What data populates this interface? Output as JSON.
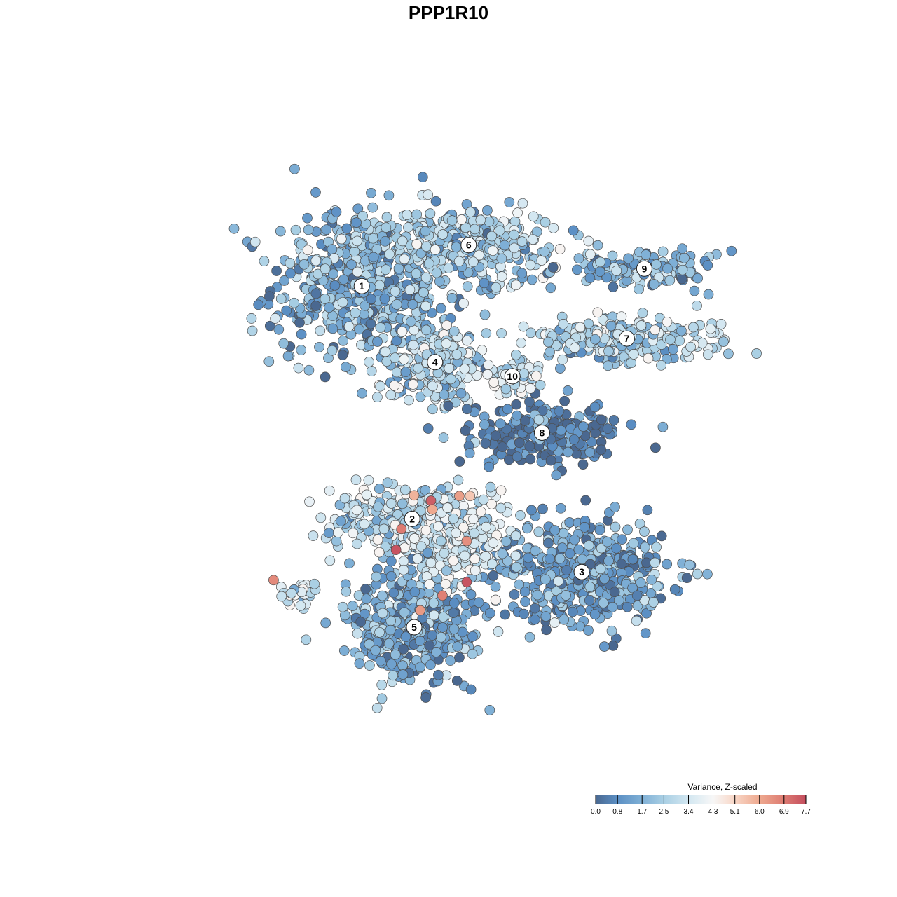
{
  "chart_data": {
    "type": "scatter",
    "title": "PPP1R10",
    "xlabel": "",
    "ylabel": "",
    "axes_visible": false,
    "grid": false,
    "legend_placement": "bottom-right",
    "color_scale": {
      "title": "Variance, Z-scaled",
      "min": 0.0,
      "max": 7.7,
      "ticks": [
        0.0,
        0.8,
        1.7,
        2.5,
        3.4,
        4.3,
        5.1,
        6.0,
        6.9,
        7.7
      ],
      "tick_labels": [
        "0.0",
        "0.8",
        "1.7",
        "2.5",
        "3.4",
        "4.3",
        "5.1",
        "6.0",
        "6.9",
        "7.7"
      ],
      "stops": [
        {
          "v": 0.0,
          "color": "#4a6890"
        },
        {
          "v": 0.8,
          "color": "#5b8fc4"
        },
        {
          "v": 1.7,
          "color": "#7fb0d6"
        },
        {
          "v": 2.5,
          "color": "#a9cfe4"
        },
        {
          "v": 3.4,
          "color": "#d3e7f1"
        },
        {
          "v": 4.3,
          "color": "#f7f7f7"
        },
        {
          "v": 5.1,
          "color": "#f8d6c6"
        },
        {
          "v": 6.0,
          "color": "#eea98f"
        },
        {
          "v": 6.9,
          "color": "#dd7b72"
        },
        {
          "v": 7.7,
          "color": "#c44e5e"
        }
      ]
    },
    "clusters": [
      {
        "id": "1",
        "x": 0.371,
        "y": 0.731,
        "spread_x": 0.066,
        "spread_y": 0.058,
        "n": 520,
        "mean_value": 1.7
      },
      {
        "id": "2",
        "x": 0.446,
        "y": 0.385,
        "spread_x": 0.06,
        "spread_y": 0.026,
        "n": 320,
        "mean_value": 3.0
      },
      {
        "id": "3",
        "x": 0.698,
        "y": 0.306,
        "spread_x": 0.065,
        "spread_y": 0.037,
        "n": 480,
        "mean_value": 1.3
      },
      {
        "id": "4",
        "x": 0.48,
        "y": 0.618,
        "spread_x": 0.032,
        "spread_y": 0.03,
        "n": 260,
        "mean_value": 2.7
      },
      {
        "id": "5",
        "x": 0.449,
        "y": 0.224,
        "spread_x": 0.047,
        "spread_y": 0.04,
        "n": 460,
        "mean_value": 1.5
      },
      {
        "id": "6",
        "x": 0.53,
        "y": 0.792,
        "spread_x": 0.068,
        "spread_y": 0.025,
        "n": 360,
        "mean_value": 2.5
      },
      {
        "id": "7",
        "x": 0.765,
        "y": 0.653,
        "spread_x": 0.07,
        "spread_y": 0.016,
        "n": 230,
        "mean_value": 2.6
      },
      {
        "id": "8",
        "x": 0.639,
        "y": 0.513,
        "spread_x": 0.055,
        "spread_y": 0.025,
        "n": 240,
        "mean_value": 0.5
      },
      {
        "id": "9",
        "x": 0.791,
        "y": 0.757,
        "spread_x": 0.05,
        "spread_y": 0.014,
        "n": 140,
        "mean_value": 1.8
      },
      {
        "id": "10",
        "x": 0.595,
        "y": 0.597,
        "spread_x": 0.018,
        "spread_y": 0.015,
        "n": 60,
        "mean_value": 3.3
      },
      {
        "id": "center",
        "x": 0.502,
        "y": 0.355,
        "spread_x": 0.045,
        "spread_y": 0.028,
        "n": 240,
        "mean_value": 3.6
      },
      {
        "id": "islet",
        "x": 0.275,
        "y": 0.275,
        "spread_x": 0.018,
        "spread_y": 0.01,
        "n": 28,
        "mean_value": 3.2
      }
    ],
    "highlighted_points": [
      {
        "x": 0.474,
        "y": 0.412,
        "value": 7.4
      },
      {
        "x": 0.527,
        "y": 0.291,
        "value": 7.6
      },
      {
        "x": 0.422,
        "y": 0.339,
        "value": 7.6
      },
      {
        "x": 0.43,
        "y": 0.37,
        "value": 6.9
      },
      {
        "x": 0.516,
        "y": 0.419,
        "value": 6.2
      },
      {
        "x": 0.527,
        "y": 0.352,
        "value": 6.5
      },
      {
        "x": 0.491,
        "y": 0.271,
        "value": 6.8
      },
      {
        "x": 0.458,
        "y": 0.249,
        "value": 6.3
      },
      {
        "x": 0.24,
        "y": 0.294,
        "value": 6.6
      },
      {
        "x": 0.449,
        "y": 0.42,
        "value": 5.8
      },
      {
        "x": 0.476,
        "y": 0.399,
        "value": 6.0
      },
      {
        "x": 0.532,
        "y": 0.419,
        "value": 5.4
      }
    ]
  }
}
